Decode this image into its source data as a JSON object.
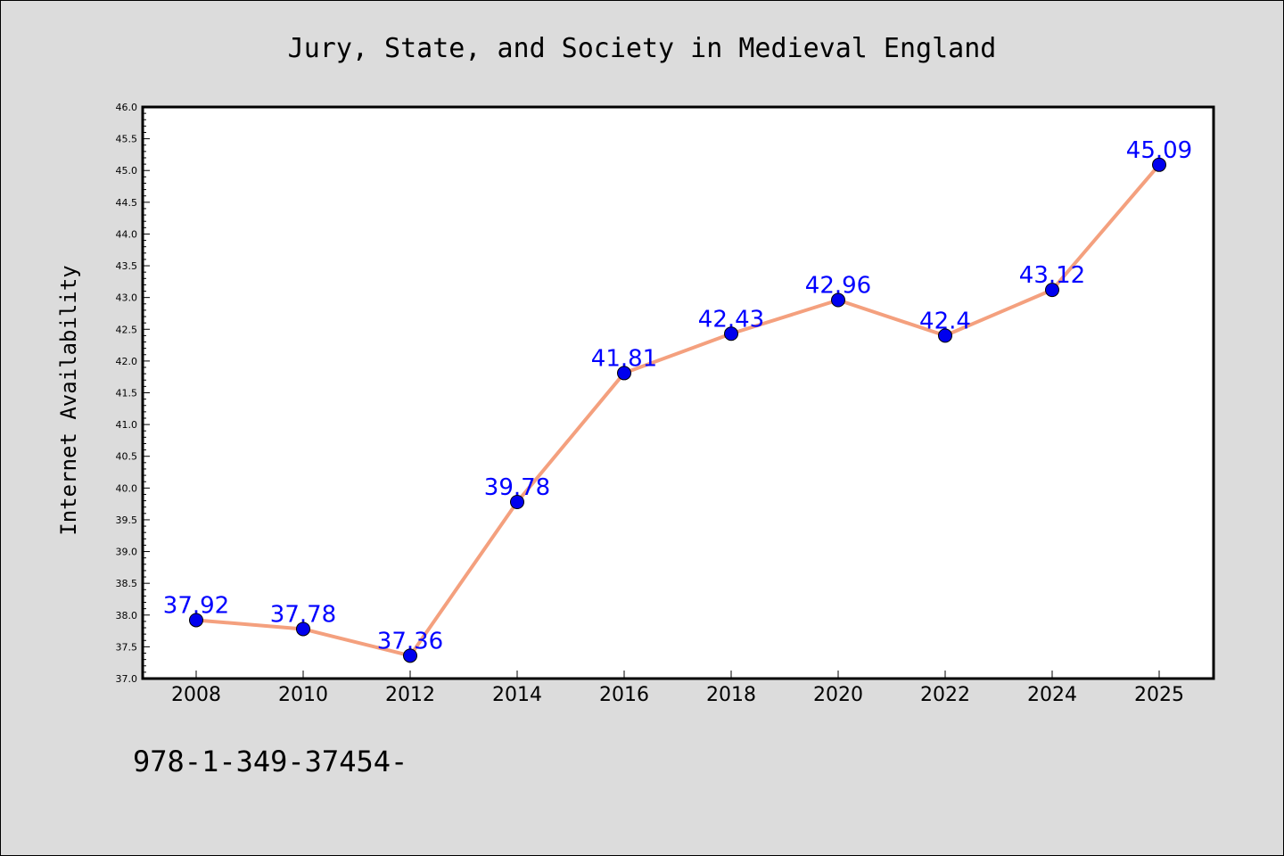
{
  "chart_data": {
    "type": "line",
    "title": "Jury, State, and Society in Medieval England",
    "xlabel": "",
    "ylabel": "Internet Availability",
    "categories": [
      "2008",
      "2010",
      "2012",
      "2014",
      "2016",
      "2018",
      "2020",
      "2022",
      "2024",
      "2025"
    ],
    "series": [
      {
        "values": [
          37.92,
          37.78,
          37.36,
          39.78,
          41.81,
          42.43,
          42.96,
          42.4,
          43.12,
          45.09
        ],
        "labels": [
          "37.92",
          "37.78",
          "37.36",
          "39.78",
          "41.81",
          "42.43",
          "42.96",
          "42.4",
          "43.12",
          "45.09"
        ],
        "line_color": "#f4a07e",
        "marker_color": "#0000ee"
      }
    ],
    "ylim": [
      37.0,
      46.0
    ],
    "yticks": [
      "37.0",
      "37.5",
      "38.0",
      "38.5",
      "39.0",
      "39.5",
      "40.0",
      "40.5",
      "41.0",
      "41.5",
      "42.0",
      "42.5",
      "43.0",
      "43.5",
      "44.0",
      "44.5",
      "45.0",
      "45.5",
      "46.0"
    ],
    "grid": false,
    "label_color": "#0000ff"
  },
  "footer": {
    "text": "978-1-349-37454-"
  }
}
